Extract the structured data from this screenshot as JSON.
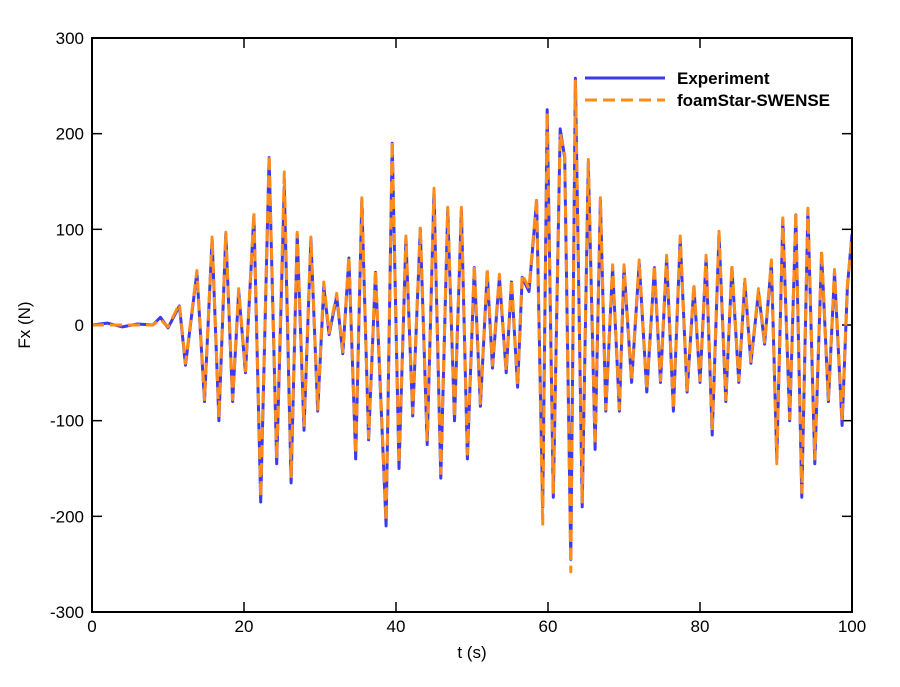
{
  "chart_data": {
    "type": "line",
    "xlabel": "t (s)",
    "ylabel": "Fx (N)",
    "x": [
      0,
      2,
      4,
      6,
      8,
      9,
      10,
      11.5,
      12.3,
      13.8,
      14.8,
      15.8,
      16.7,
      17.6,
      18.5,
      19.3,
      20.2,
      21.3,
      22.2,
      23.3,
      24.3,
      25.3,
      26.2,
      27,
      27.9,
      28.8,
      29.7,
      30.5,
      31.2,
      32.2,
      33,
      33.8,
      34.7,
      35.5,
      36.4,
      37.3,
      38.7,
      39.5,
      40.4,
      41.3,
      42.2,
      43.2,
      44.1,
      45,
      45.9,
      46.8,
      47.7,
      48.6,
      49.4,
      50.3,
      51.1,
      52,
      52.7,
      53.6,
      54.5,
      55.2,
      56,
      56.6,
      57.5,
      58.5,
      59.3,
      59.9,
      60.7,
      61.6,
      62.2,
      63,
      63.6,
      64.5,
      65.3,
      66.2,
      66.9,
      67.6,
      68.5,
      69.4,
      70,
      71,
      72,
      73,
      74,
      74.8,
      75.6,
      76.5,
      77.4,
      78.3,
      79.2,
      80,
      80.8,
      81.6,
      82.5,
      83.4,
      84.2,
      85.1,
      85.9,
      86.7,
      87.7,
      88.5,
      89.4,
      90.1,
      90.9,
      91.8,
      92.6,
      93.4,
      94.2,
      95.1,
      96,
      96.9,
      97.7,
      98.7,
      99.4,
      100
    ],
    "series": [
      {
        "name": "Experiment",
        "color": "#3a3af0",
        "dash": false,
        "values": [
          0,
          2,
          -2,
          1,
          0,
          8,
          -3,
          20,
          -42,
          55,
          -80,
          90,
          -100,
          95,
          -80,
          35,
          -50,
          115,
          -185,
          175,
          -145,
          145,
          -165,
          95,
          -110,
          90,
          -90,
          40,
          -10,
          30,
          -30,
          70,
          -140,
          130,
          -120,
          55,
          -210,
          190,
          -150,
          90,
          -95,
          100,
          -125,
          140,
          -160,
          120,
          -100,
          120,
          -140,
          60,
          -85,
          55,
          -45,
          50,
          -50,
          45,
          -65,
          50,
          35,
          130,
          -190,
          225,
          -180,
          205,
          175,
          -245,
          258,
          -190,
          170,
          -130,
          130,
          -90,
          60,
          -90,
          60,
          -60,
          65,
          -70,
          60,
          -60,
          70,
          -90,
          90,
          -70,
          40,
          -60,
          70,
          -115,
          95,
          -80,
          60,
          -60,
          45,
          -40,
          35,
          -20,
          65,
          -140,
          110,
          -100,
          115,
          -180,
          120,
          -145,
          75,
          -80,
          55,
          -105,
          40,
          95
        ]
      },
      {
        "name": "foamStar-SWENSE",
        "color": "#ff8c1a",
        "dash": true,
        "values": [
          0,
          0,
          0,
          0,
          0,
          6,
          -2,
          22,
          -40,
          57,
          -78,
          92,
          -97,
          97,
          -78,
          38,
          -48,
          118,
          -180,
          178,
          -140,
          160,
          -160,
          97,
          -105,
          92,
          -88,
          45,
          -8,
          33,
          -28,
          72,
          -135,
          133,
          -118,
          58,
          -205,
          192,
          -145,
          93,
          -92,
          103,
          -120,
          143,
          -155,
          123,
          -97,
          123,
          -135,
          63,
          -82,
          58,
          -42,
          53,
          -48,
          48,
          -62,
          53,
          38,
          133,
          -210,
          222,
          -175,
          200,
          178,
          -258,
          255,
          -185,
          173,
          -125,
          133,
          -88,
          63,
          -88,
          63,
          -58,
          68,
          -68,
          63,
          -58,
          73,
          -88,
          93,
          -68,
          43,
          -58,
          73,
          -110,
          98,
          -78,
          63,
          -58,
          48,
          -38,
          38,
          -18,
          68,
          -145,
          112,
          -98,
          118,
          -175,
          122,
          -140,
          78,
          -78,
          58,
          -100,
          43,
          92
        ]
      }
    ],
    "xlim": [
      0,
      100
    ],
    "xticks": [
      0,
      20,
      40,
      60,
      80,
      100
    ],
    "ylim": [
      -300,
      300
    ],
    "yticks": [
      -300,
      -200,
      -100,
      0,
      100,
      200,
      300
    ],
    "legend": "upper right"
  }
}
